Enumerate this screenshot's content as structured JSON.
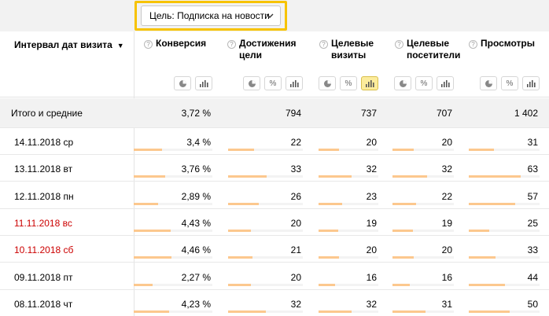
{
  "goal_filter": {
    "label": "Цель: Подписка на новости",
    "chevron_icon": "chevron-down-icon"
  },
  "dimension_header": {
    "label": "Интервал дат визита",
    "sort_icon": "▼"
  },
  "columns": [
    {
      "key": "conversion",
      "line1": "Конверсия",
      "line2": ""
    },
    {
      "key": "goal_reaches",
      "line1": "Достижения",
      "line2": "цели"
    },
    {
      "key": "target_visits",
      "line1": "Целевые",
      "line2": "визиты"
    },
    {
      "key": "target_visitors",
      "line1": "Целевые",
      "line2": "посетители"
    },
    {
      "key": "pageviews",
      "line1": "Просмотры",
      "line2": ""
    }
  ],
  "view_buttons": {
    "pie": "pie-chart-icon",
    "percent": "%",
    "bars": "bar-chart-icon"
  },
  "totals": {
    "label": "Итого и средние",
    "values": [
      "3,72 %",
      "794",
      "737",
      "707",
      "1 402"
    ]
  },
  "rows": [
    {
      "date": "14.11.2018 ср",
      "weekend": false,
      "values": [
        "3,4 %",
        "22",
        "20",
        "20",
        "31"
      ],
      "fill": [
        0.36,
        0.35,
        0.34,
        0.35,
        0.36
      ]
    },
    {
      "date": "13.11.2018 вт",
      "weekend": false,
      "values": [
        "3,76 %",
        "33",
        "32",
        "32",
        "63"
      ],
      "fill": [
        0.4,
        0.52,
        0.55,
        0.56,
        0.73
      ]
    },
    {
      "date": "12.11.2018 пн",
      "weekend": false,
      "values": [
        "2,89 %",
        "26",
        "23",
        "22",
        "57"
      ],
      "fill": [
        0.31,
        0.41,
        0.39,
        0.39,
        0.66
      ]
    },
    {
      "date": "11.11.2018 вс",
      "weekend": true,
      "values": [
        "4,43 %",
        "20",
        "19",
        "19",
        "25"
      ],
      "fill": [
        0.47,
        0.31,
        0.33,
        0.33,
        0.29
      ]
    },
    {
      "date": "10.11.2018 сб",
      "weekend": true,
      "values": [
        "4,46 %",
        "21",
        "20",
        "20",
        "33"
      ],
      "fill": [
        0.48,
        0.33,
        0.34,
        0.35,
        0.38
      ]
    },
    {
      "date": "09.11.2018 пт",
      "weekend": false,
      "values": [
        "2,27 %",
        "20",
        "16",
        "16",
        "44"
      ],
      "fill": [
        0.24,
        0.31,
        0.27,
        0.28,
        0.51
      ]
    },
    {
      "date": "08.11.2018 чт",
      "weekend": false,
      "values": [
        "4,23 %",
        "32",
        "32",
        "31",
        "50"
      ],
      "fill": [
        0.45,
        0.5,
        0.55,
        0.54,
        0.58
      ]
    }
  ]
}
